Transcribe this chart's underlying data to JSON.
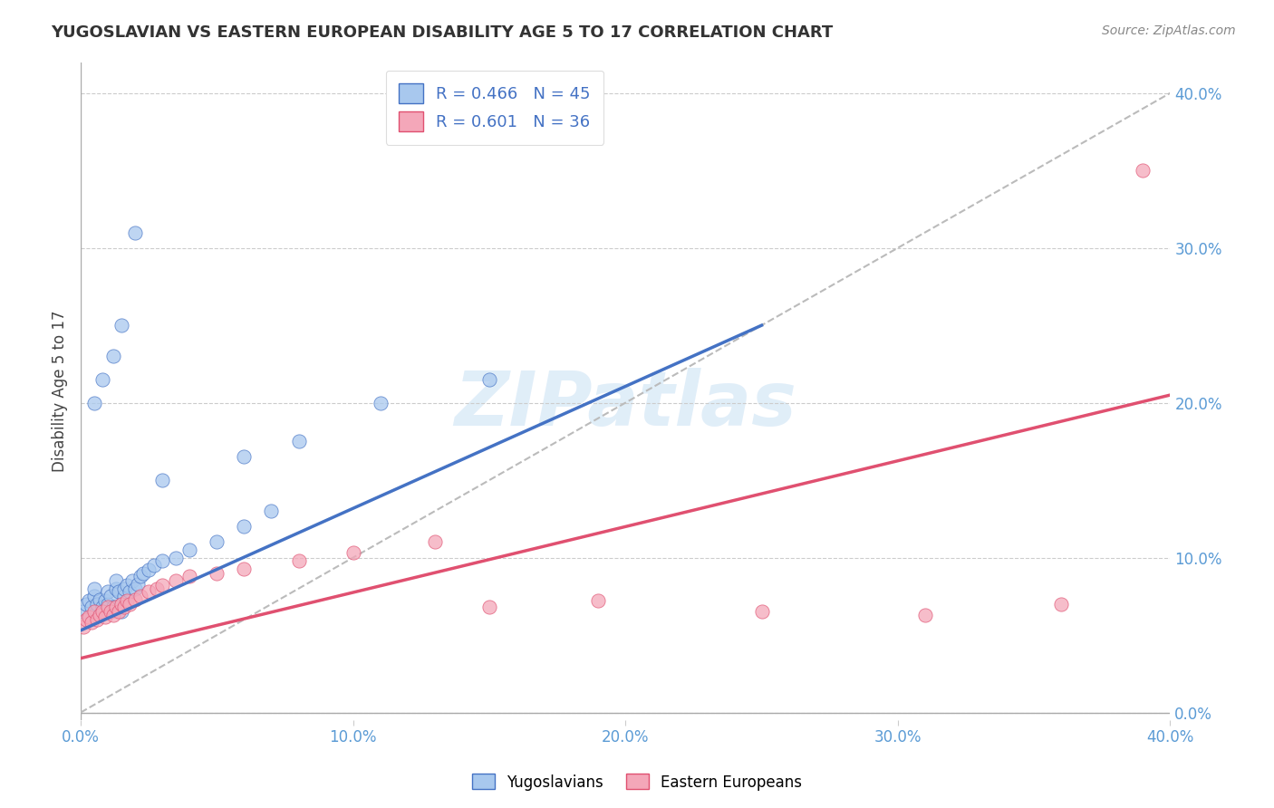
{
  "title": "YUGOSLAVIAN VS EASTERN EUROPEAN DISABILITY AGE 5 TO 17 CORRELATION CHART",
  "source": "Source: ZipAtlas.com",
  "ylabel": "Disability Age 5 to 17",
  "xlim": [
    0.0,
    0.4
  ],
  "ylim": [
    -0.005,
    0.42
  ],
  "xtick_labels": [
    "0.0%",
    "10.0%",
    "20.0%",
    "30.0%",
    "40.0%"
  ],
  "xtick_vals": [
    0.0,
    0.1,
    0.2,
    0.3,
    0.4
  ],
  "ytick_labels": [
    "0.0%",
    "10.0%",
    "20.0%",
    "30.0%",
    "40.0%"
  ],
  "ytick_vals": [
    0.0,
    0.1,
    0.2,
    0.3,
    0.4
  ],
  "color_yugo": "#A8C8EE",
  "color_east": "#F4A7B9",
  "color_line_yugo": "#4472C4",
  "color_line_east": "#E05070",
  "color_dashed": "#BBBBBB",
  "R_yugo": 0.466,
  "N_yugo": 45,
  "R_east": 0.601,
  "N_east": 36,
  "watermark": "ZIPatlas",
  "yugo_x": [
    0.001,
    0.002,
    0.003,
    0.004,
    0.005,
    0.005,
    0.006,
    0.007,
    0.008,
    0.009,
    0.01,
    0.01,
    0.011,
    0.012,
    0.013,
    0.013,
    0.014,
    0.015,
    0.016,
    0.016,
    0.017,
    0.018,
    0.019,
    0.02,
    0.021,
    0.022,
    0.023,
    0.025,
    0.027,
    0.03,
    0.035,
    0.04,
    0.05,
    0.06,
    0.07,
    0.03,
    0.06,
    0.08,
    0.11,
    0.15,
    0.005,
    0.008,
    0.012,
    0.015,
    0.02
  ],
  "yugo_y": [
    0.065,
    0.07,
    0.072,
    0.068,
    0.075,
    0.08,
    0.07,
    0.073,
    0.068,
    0.072,
    0.07,
    0.078,
    0.075,
    0.068,
    0.08,
    0.085,
    0.078,
    0.065,
    0.075,
    0.08,
    0.082,
    0.078,
    0.085,
    0.08,
    0.083,
    0.088,
    0.09,
    0.092,
    0.095,
    0.098,
    0.1,
    0.105,
    0.11,
    0.12,
    0.13,
    0.15,
    0.165,
    0.175,
    0.2,
    0.215,
    0.2,
    0.215,
    0.23,
    0.25,
    0.31
  ],
  "east_x": [
    0.001,
    0.002,
    0.003,
    0.004,
    0.005,
    0.006,
    0.007,
    0.008,
    0.009,
    0.01,
    0.011,
    0.012,
    0.013,
    0.014,
    0.015,
    0.016,
    0.017,
    0.018,
    0.02,
    0.022,
    0.025,
    0.028,
    0.03,
    0.035,
    0.04,
    0.05,
    0.06,
    0.08,
    0.1,
    0.13,
    0.15,
    0.19,
    0.25,
    0.31,
    0.36,
    0.39
  ],
  "east_y": [
    0.055,
    0.06,
    0.062,
    0.058,
    0.065,
    0.06,
    0.063,
    0.065,
    0.062,
    0.068,
    0.065,
    0.063,
    0.068,
    0.065,
    0.07,
    0.068,
    0.072,
    0.07,
    0.073,
    0.075,
    0.078,
    0.08,
    0.082,
    0.085,
    0.088,
    0.09,
    0.093,
    0.098,
    0.103,
    0.11,
    0.068,
    0.072,
    0.065,
    0.063,
    0.07,
    0.35
  ],
  "yugo_line_x": [
    0.0,
    0.25
  ],
  "yugo_line_y": [
    0.053,
    0.25
  ],
  "east_line_x": [
    0.0,
    0.4
  ],
  "east_line_y": [
    0.035,
    0.205
  ]
}
